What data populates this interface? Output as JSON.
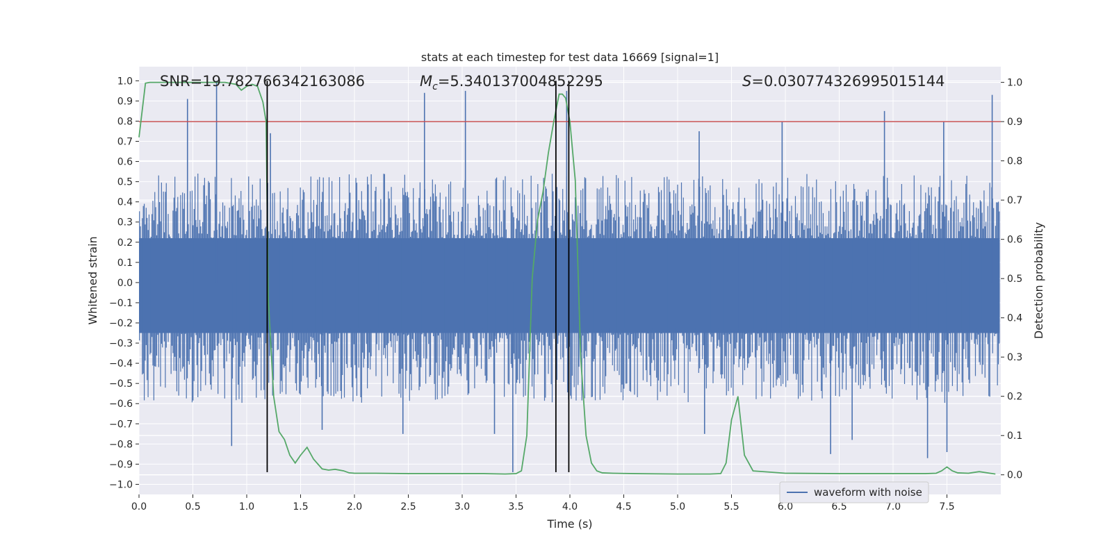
{
  "chart_data": {
    "type": "line",
    "title": "stats at each timestep for test data 16669 [signal=1]",
    "xlabel": "Time (s)",
    "ylabel": "Whitened strain",
    "ylabel_right": "Detection probability",
    "xlim": [
      0.0,
      8.0
    ],
    "ylim": [
      -1.05,
      1.07
    ],
    "ylim_right": [
      -0.05,
      1.04
    ],
    "x_ticks": [
      "0.0",
      "0.5",
      "1.0",
      "1.5",
      "2.0",
      "2.5",
      "3.0",
      "3.5",
      "4.0",
      "4.5",
      "5.0",
      "5.5",
      "6.0",
      "6.5",
      "7.0",
      "7.5"
    ],
    "y_ticks": [
      "1.0",
      "0.9",
      "0.8",
      "0.7",
      "0.6",
      "0.5",
      "0.4",
      "0.3",
      "0.2",
      "0.1",
      "0.0",
      "−0.1",
      "−0.2",
      "−0.3",
      "−0.4",
      "−0.5",
      "−0.6",
      "−0.7",
      "−0.8",
      "−0.9",
      "−1.0"
    ],
    "y_right_ticks": [
      "1.0",
      "0.9",
      "0.8",
      "0.7",
      "0.6",
      "0.5",
      "0.4",
      "0.3",
      "0.2",
      "0.1",
      "0.0"
    ],
    "grid": true,
    "legend_position": "lower-right",
    "annotations": {
      "snr": "SNR=19.782766342163086",
      "mc_symbol": "M",
      "mc_sub": "c",
      "mc_value": "=5.340137004852295",
      "s_symbol": "S",
      "s_value": "=0.030774326995015144"
    },
    "series": [
      {
        "name": "waveform with noise",
        "axis": "left",
        "color": "#4c72b0",
        "envelope": {
          "typical_upper": 0.45,
          "typical_lower": -0.5,
          "upper_spikes": [
            [
              0.45,
              0.91
            ],
            [
              0.72,
              1.0
            ],
            [
              1.22,
              0.74
            ],
            [
              2.65,
              0.94
            ],
            [
              3.03,
              0.95
            ],
            [
              3.97,
              0.95
            ],
            [
              5.2,
              0.75
            ],
            [
              5.97,
              0.8
            ],
            [
              6.92,
              0.85
            ],
            [
              7.47,
              0.8
            ],
            [
              7.92,
              0.93
            ]
          ],
          "lower_spikes": [
            [
              0.86,
              -0.81
            ],
            [
              1.7,
              -0.73
            ],
            [
              2.45,
              -0.75
            ],
            [
              3.47,
              -0.94
            ],
            [
              3.3,
              -0.75
            ],
            [
              5.25,
              -0.75
            ],
            [
              6.42,
              -0.85
            ],
            [
              6.62,
              -0.78
            ],
            [
              7.32,
              -0.87
            ],
            [
              7.5,
              -0.84
            ]
          ]
        }
      },
      {
        "name": "",
        "axis": "right",
        "color": "#55a868",
        "x": [
          0.0,
          0.06,
          0.1,
          0.2,
          0.3,
          0.4,
          0.5,
          0.6,
          0.7,
          0.8,
          0.9,
          0.95,
          1.0,
          1.05,
          1.1,
          1.15,
          1.18,
          1.2,
          1.25,
          1.3,
          1.35,
          1.4,
          1.45,
          1.5,
          1.56,
          1.62,
          1.7,
          1.76,
          1.82,
          1.9,
          1.95,
          2.0,
          2.2,
          2.5,
          3.0,
          3.2,
          3.4,
          3.5,
          3.55,
          3.6,
          3.65,
          3.7,
          3.75,
          3.8,
          3.85,
          3.9,
          3.93,
          3.96,
          4.0,
          4.05,
          4.1,
          4.15,
          4.2,
          4.25,
          4.3,
          4.4,
          4.6,
          5.0,
          5.3,
          5.4,
          5.45,
          5.5,
          5.56,
          5.62,
          5.7,
          5.8,
          6.0,
          6.5,
          7.0,
          7.3,
          7.4,
          7.45,
          7.5,
          7.55,
          7.6,
          7.7,
          7.8,
          7.9,
          7.95
        ],
        "y": [
          0.86,
          0.998,
          1.0,
          1.0,
          1.0,
          1.0,
          1.0,
          1.0,
          1.0,
          1.0,
          0.995,
          0.98,
          0.99,
          0.995,
          0.99,
          0.95,
          0.9,
          0.45,
          0.2,
          0.11,
          0.09,
          0.05,
          0.03,
          0.05,
          0.07,
          0.04,
          0.015,
          0.012,
          0.014,
          0.01,
          0.005,
          0.004,
          0.004,
          0.003,
          0.003,
          0.003,
          0.002,
          0.003,
          0.01,
          0.1,
          0.5,
          0.65,
          0.72,
          0.82,
          0.9,
          0.97,
          0.97,
          0.96,
          0.9,
          0.75,
          0.3,
          0.1,
          0.03,
          0.01,
          0.005,
          0.004,
          0.003,
          0.002,
          0.002,
          0.003,
          0.03,
          0.14,
          0.2,
          0.05,
          0.01,
          0.008,
          0.004,
          0.003,
          0.003,
          0.003,
          0.004,
          0.01,
          0.02,
          0.01,
          0.005,
          0.004,
          0.008,
          0.004,
          0.002
        ]
      }
    ],
    "threshold_line": {
      "axis": "right",
      "y": 0.9,
      "color": "#c44e52"
    },
    "vertical_lines": [
      1.19,
      3.87,
      3.99
    ],
    "vertical_line_span": [
      -0.94,
      1.0
    ]
  }
}
